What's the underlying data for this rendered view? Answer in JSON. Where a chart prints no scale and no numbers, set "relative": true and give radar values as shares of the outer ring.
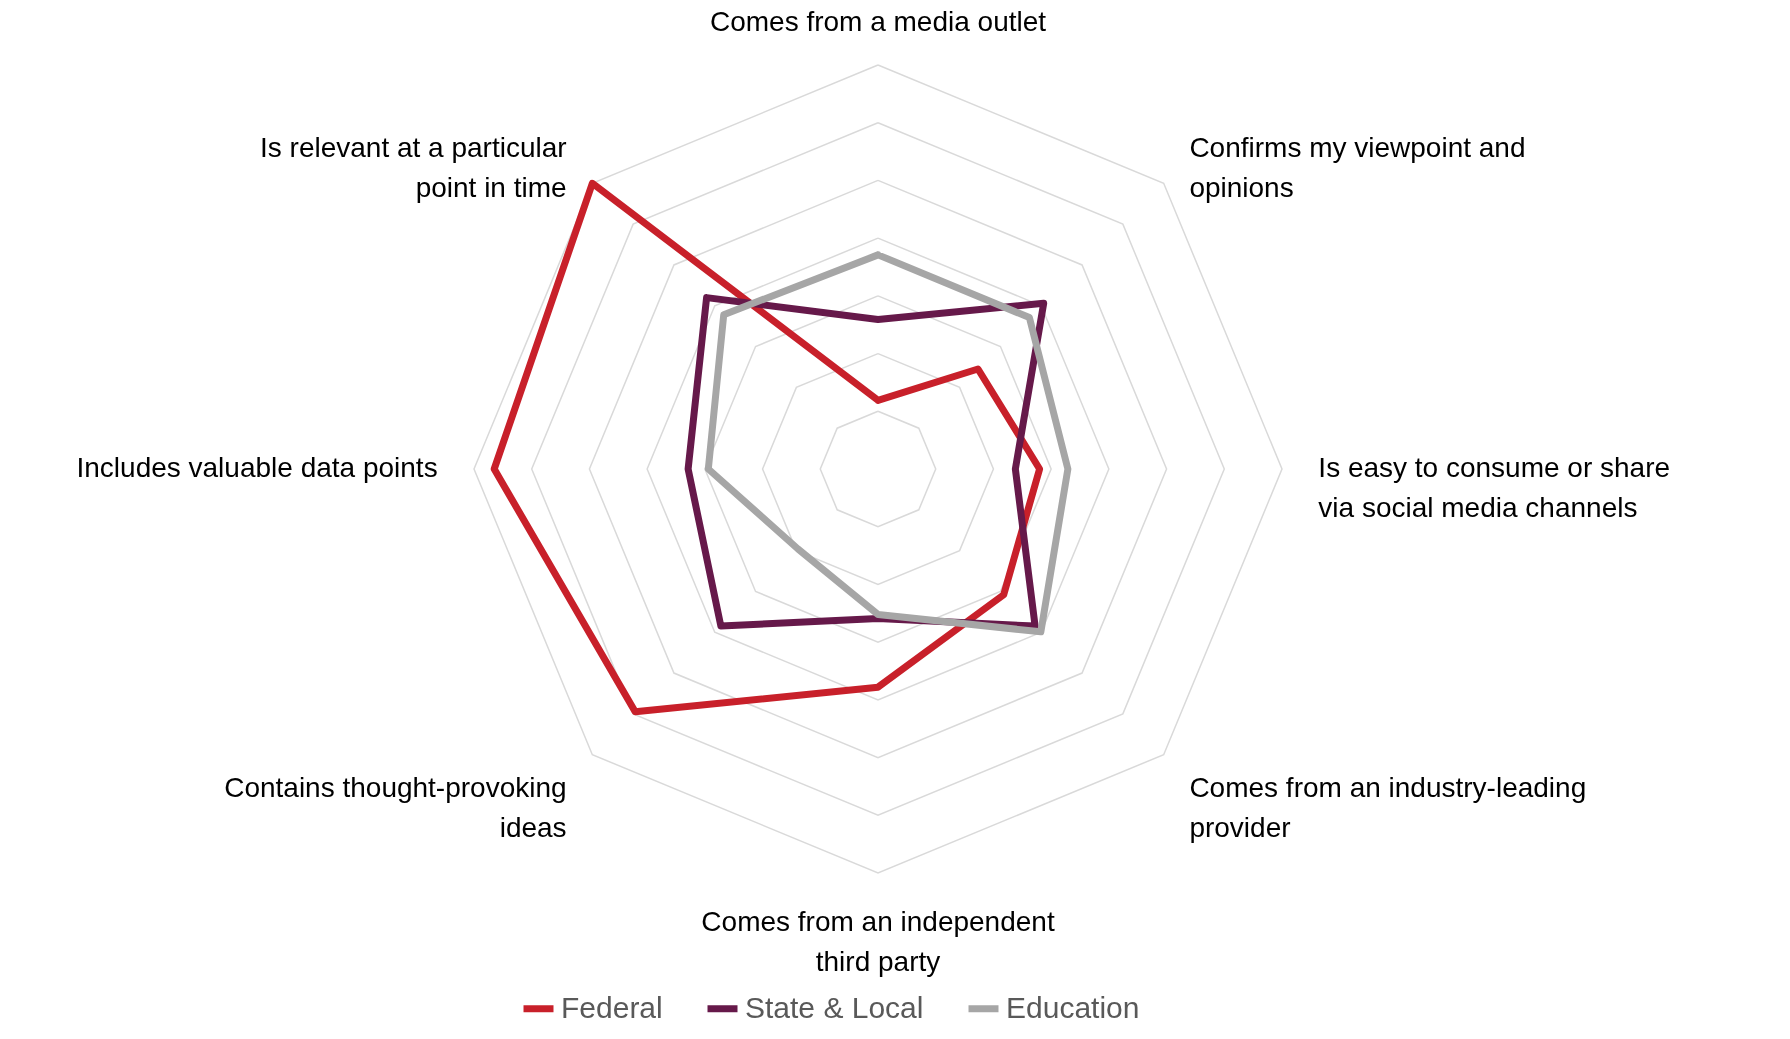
{
  "chart_data": {
    "type": "radar",
    "relative": true,
    "grid": true,
    "legend": "bottom",
    "categories": [
      "Comes from a media outlet",
      "Confirms my viewpoint and opinions",
      "Is easy to consume or share via social media channels",
      "Comes from an industry-leading provider",
      "Comes from an independent third party",
      "Contains thought-provoking ideas",
      "Includes valuable data points",
      "Is relevant at a particular point in time"
    ],
    "series": [
      {
        "name": "Federal",
        "color": "#c8202a",
        "values": [
          0.17,
          0.35,
          0.4,
          0.44,
          0.54,
          0.85,
          0.95,
          1.0
        ]
      },
      {
        "name": "State & Local",
        "color": "#66194a",
        "values": [
          0.37,
          0.58,
          0.34,
          0.55,
          0.37,
          0.55,
          0.47,
          0.6
        ]
      },
      {
        "name": "Education",
        "color": "#a6a6a6",
        "values": [
          0.53,
          0.53,
          0.47,
          0.57,
          0.36,
          0.28,
          0.42,
          0.54
        ]
      }
    ]
  }
}
